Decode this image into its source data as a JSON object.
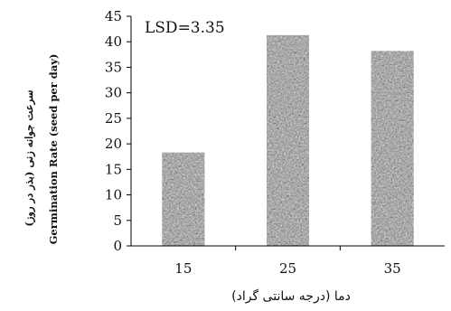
{
  "chart_data": {
    "type": "bar",
    "categories": [
      "15",
      "25",
      "35"
    ],
    "values": [
      18.3,
      41.3,
      38.2
    ],
    "ylim": [
      0,
      45
    ],
    "yticks": [
      0,
      5,
      10,
      15,
      20,
      25,
      30,
      35,
      40,
      45
    ],
    "xlabel": "دما (درجه سانتی گراد)",
    "ylabel_fa": "سرعت جوانه زنی (بذر در روز)",
    "ylabel_en": "Germination Rate (seed per day)",
    "annotation": "LSD=3.35",
    "grid": false,
    "legend": "none",
    "bar_color": "#9a9a9a",
    "axis_color": "#000000"
  }
}
